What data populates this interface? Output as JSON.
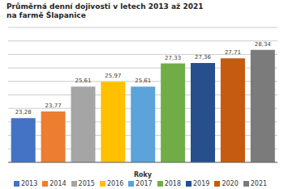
{
  "chart_data": {
    "type": "bar",
    "title": "Průměrná denní dojivosti v letech 2013 až 2021\nna farmě Šlapanice",
    "xlabel": "Roky",
    "categories": [
      "2013",
      "2014",
      "2015",
      "2016",
      "2017",
      "2018",
      "2019",
      "2020",
      "2021"
    ],
    "values": [
      23.28,
      23.77,
      25.61,
      25.97,
      25.61,
      27.33,
      27.36,
      27.71,
      28.34
    ],
    "value_labels": [
      "23,28",
      "23,77",
      "25,61",
      "25,97",
      "25,61",
      "27,33",
      "27,36",
      "27,71",
      "28,34"
    ],
    "colors": [
      "#4472C4",
      "#ED7D31",
      "#A5A5A5",
      "#FFC000",
      "#5BA3D9",
      "#70AD47",
      "#264F8C",
      "#C55A11",
      "#7B7B7B"
    ],
    "ylim": [
      20,
      30
    ],
    "yticks": [
      20,
      21,
      22,
      23,
      24,
      25,
      26,
      27,
      28,
      29,
      30
    ],
    "grid": true,
    "legend": "bottom",
    "data_labels": true,
    "tick_labels": false
  }
}
